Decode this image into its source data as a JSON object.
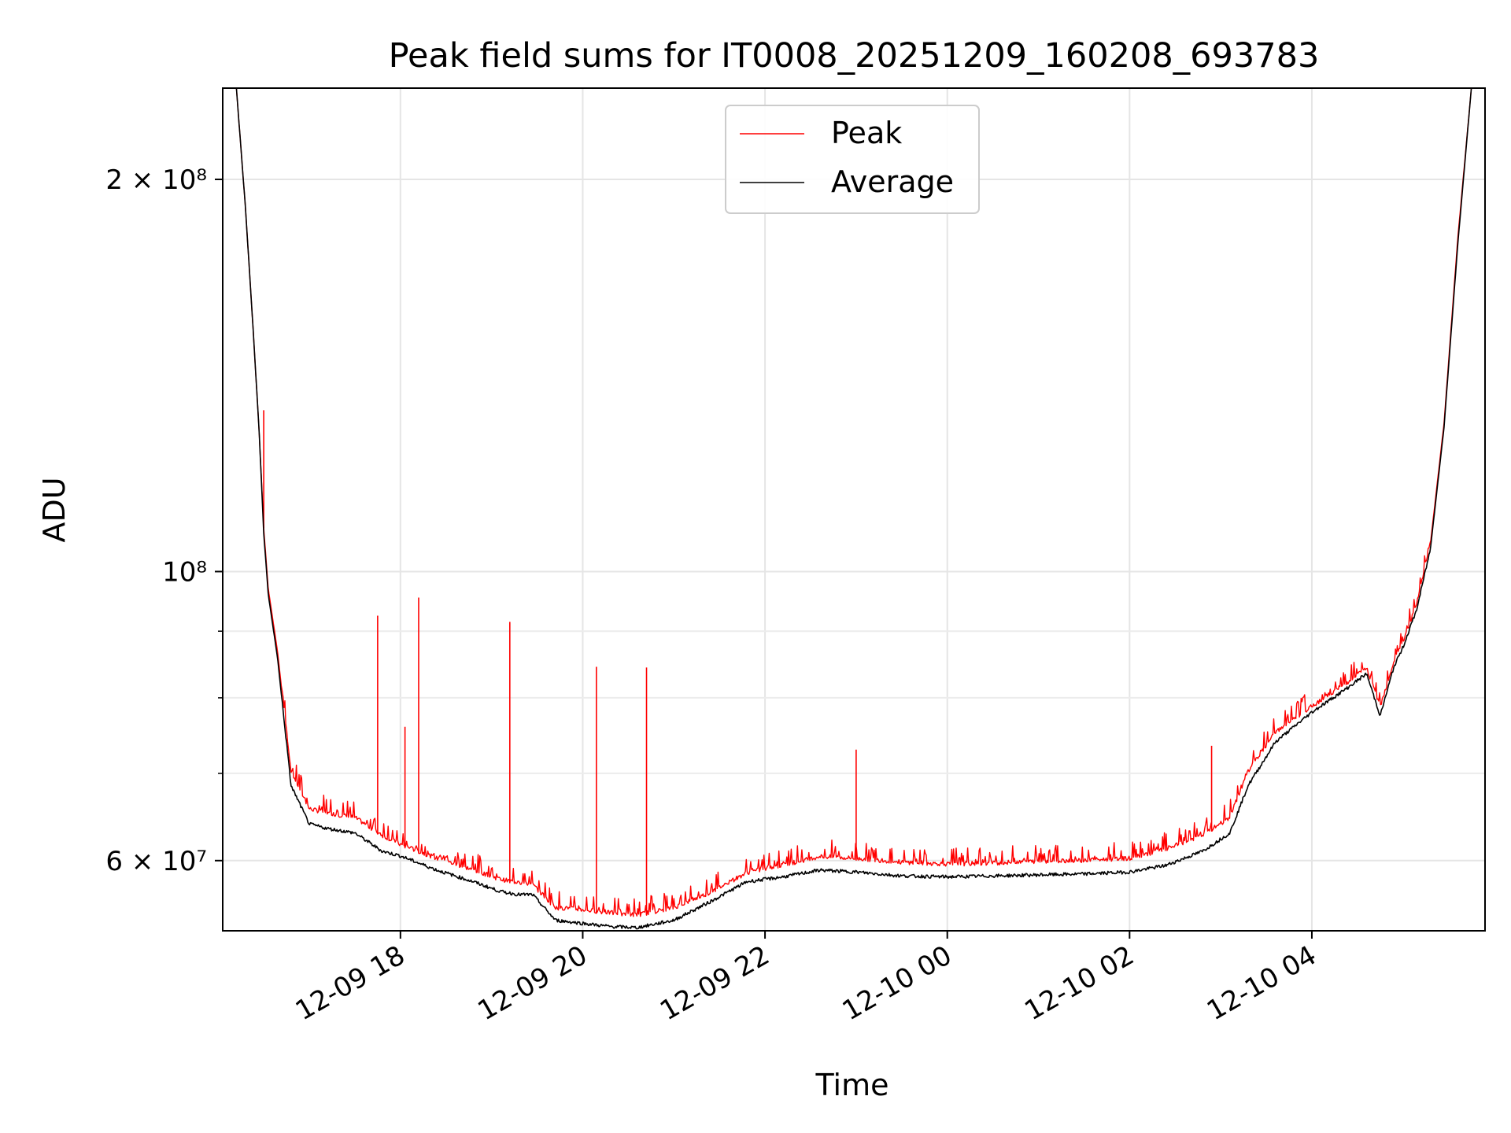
{
  "chart_data": {
    "type": "line",
    "title": "Peak field sums for IT0008_20251209_160208_693783",
    "xlabel": "Time",
    "ylabel": "ADU",
    "yscale": "log",
    "grid": true,
    "legend_position": "top-center",
    "xlim_hours": [
      16.05,
      5.9
    ],
    "ylim": [
      53000000,
      235000000
    ],
    "x_ticks": [
      {
        "hour": 18,
        "label": "12-09 18"
      },
      {
        "hour": 20,
        "label": "12-09 20"
      },
      {
        "hour": 22,
        "label": "12-09 22"
      },
      {
        "hour": 24,
        "label": "12-10 00"
      },
      {
        "hour": 26,
        "label": "12-10 02"
      },
      {
        "hour": 28,
        "label": "12-10 04"
      }
    ],
    "y_ticks": [
      {
        "value": 60000000,
        "label": "6 × 10⁷"
      },
      {
        "value": 100000000,
        "label": "10⁸"
      },
      {
        "value": 200000000,
        "label": "2 × 10⁸"
      }
    ],
    "y_minor_ticks": [
      70000000,
      80000000,
      90000000
    ],
    "series": [
      {
        "name": "Peak",
        "color": "#ff0000",
        "x": [
          16.2,
          16.3,
          16.38,
          16.45,
          16.5,
          16.55,
          16.65,
          16.8,
          17.0,
          17.2,
          17.5,
          17.8,
          18.0,
          18.4,
          18.8,
          19.1,
          19.3,
          19.45,
          19.7,
          20.0,
          20.3,
          20.6,
          21.0,
          21.4,
          21.8,
          22.2,
          22.6,
          23.0,
          23.5,
          24.0,
          24.5,
          25.0,
          25.5,
          26.0,
          26.4,
          26.8,
          27.1,
          27.3,
          27.6,
          28.0,
          28.4,
          28.6,
          28.75,
          28.9,
          29.0,
          29.15,
          29.3,
          29.45,
          29.6,
          29.75
        ],
        "values": [
          235000000,
          190000000,
          155000000,
          128000000,
          108000000,
          97000000,
          87000000,
          70000000,
          65500000,
          65000000,
          64500000,
          62500000,
          61500000,
          60000000,
          58800000,
          57800000,
          57500000,
          57300000,
          55000000,
          54800000,
          54500000,
          54300000,
          55000000,
          56500000,
          58500000,
          59300000,
          60200000,
          60000000,
          59600000,
          59400000,
          59500000,
          59700000,
          59800000,
          60000000,
          61000000,
          62500000,
          64500000,
          70000000,
          75000000,
          78500000,
          82000000,
          84000000,
          78500000,
          85000000,
          88000000,
          94000000,
          105000000,
          130000000,
          180000000,
          235000000
        ],
        "spikes": [
          {
            "x": 16.5,
            "value": 133000000
          },
          {
            "x": 17.75,
            "value": 92500000
          },
          {
            "x": 18.05,
            "value": 76000000
          },
          {
            "x": 18.2,
            "value": 95500000
          },
          {
            "x": 19.2,
            "value": 91500000
          },
          {
            "x": 20.15,
            "value": 84500000
          },
          {
            "x": 20.7,
            "value": 84400000
          },
          {
            "x": 23.0,
            "value": 73000000
          },
          {
            "x": 26.9,
            "value": 73500000
          }
        ]
      },
      {
        "name": "Average",
        "color": "#000000",
        "x": [
          16.2,
          16.3,
          16.38,
          16.45,
          16.5,
          16.55,
          16.65,
          16.8,
          17.0,
          17.2,
          17.5,
          17.8,
          18.0,
          18.4,
          18.8,
          19.1,
          19.3,
          19.45,
          19.7,
          20.0,
          20.3,
          20.6,
          21.0,
          21.4,
          21.8,
          22.2,
          22.6,
          23.0,
          23.5,
          24.0,
          24.5,
          25.0,
          25.5,
          26.0,
          26.4,
          26.8,
          27.1,
          27.3,
          27.6,
          28.0,
          28.4,
          28.6,
          28.75,
          28.9,
          29.0,
          29.15,
          29.3,
          29.45,
          29.6,
          29.75
        ],
        "values": [
          235000000,
          190000000,
          155000000,
          128000000,
          107000000,
          96000000,
          86000000,
          68500000,
          64000000,
          63500000,
          63000000,
          61000000,
          60500000,
          59000000,
          57800000,
          56800000,
          56500000,
          56500000,
          54000000,
          53700000,
          53400000,
          53300000,
          54000000,
          55800000,
          57800000,
          58300000,
          59000000,
          58800000,
          58400000,
          58300000,
          58400000,
          58500000,
          58600000,
          58800000,
          59500000,
          61000000,
          63000000,
          68500000,
          74000000,
          78000000,
          81500000,
          83500000,
          77500000,
          84500000,
          87500000,
          93500000,
          104000000,
          129000000,
          178000000,
          235000000
        ]
      }
    ]
  }
}
